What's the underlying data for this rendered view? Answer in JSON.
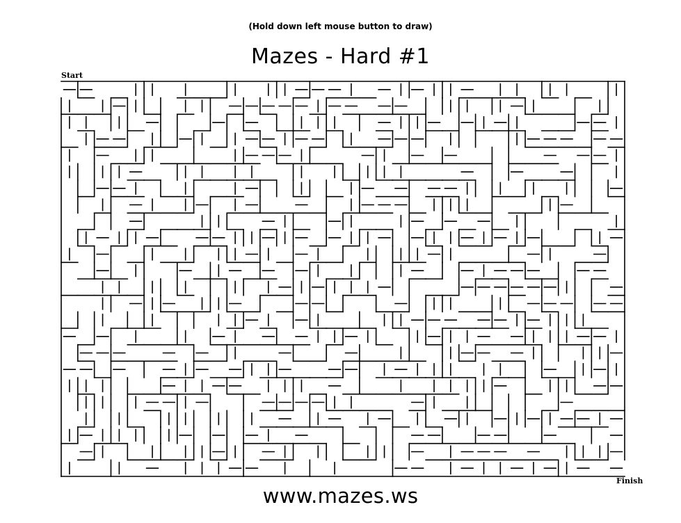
{
  "header": {
    "instruction": "(Hold down left mouse button to draw)",
    "title": "Mazes - Hard #1"
  },
  "maze": {
    "start_label": "Start",
    "finish_label": "Finish",
    "wall_color": "#000000",
    "background_color": "#ffffff",
    "columns": 34,
    "rows": 24
  },
  "footer": {
    "url": "www.mazes.ws"
  }
}
